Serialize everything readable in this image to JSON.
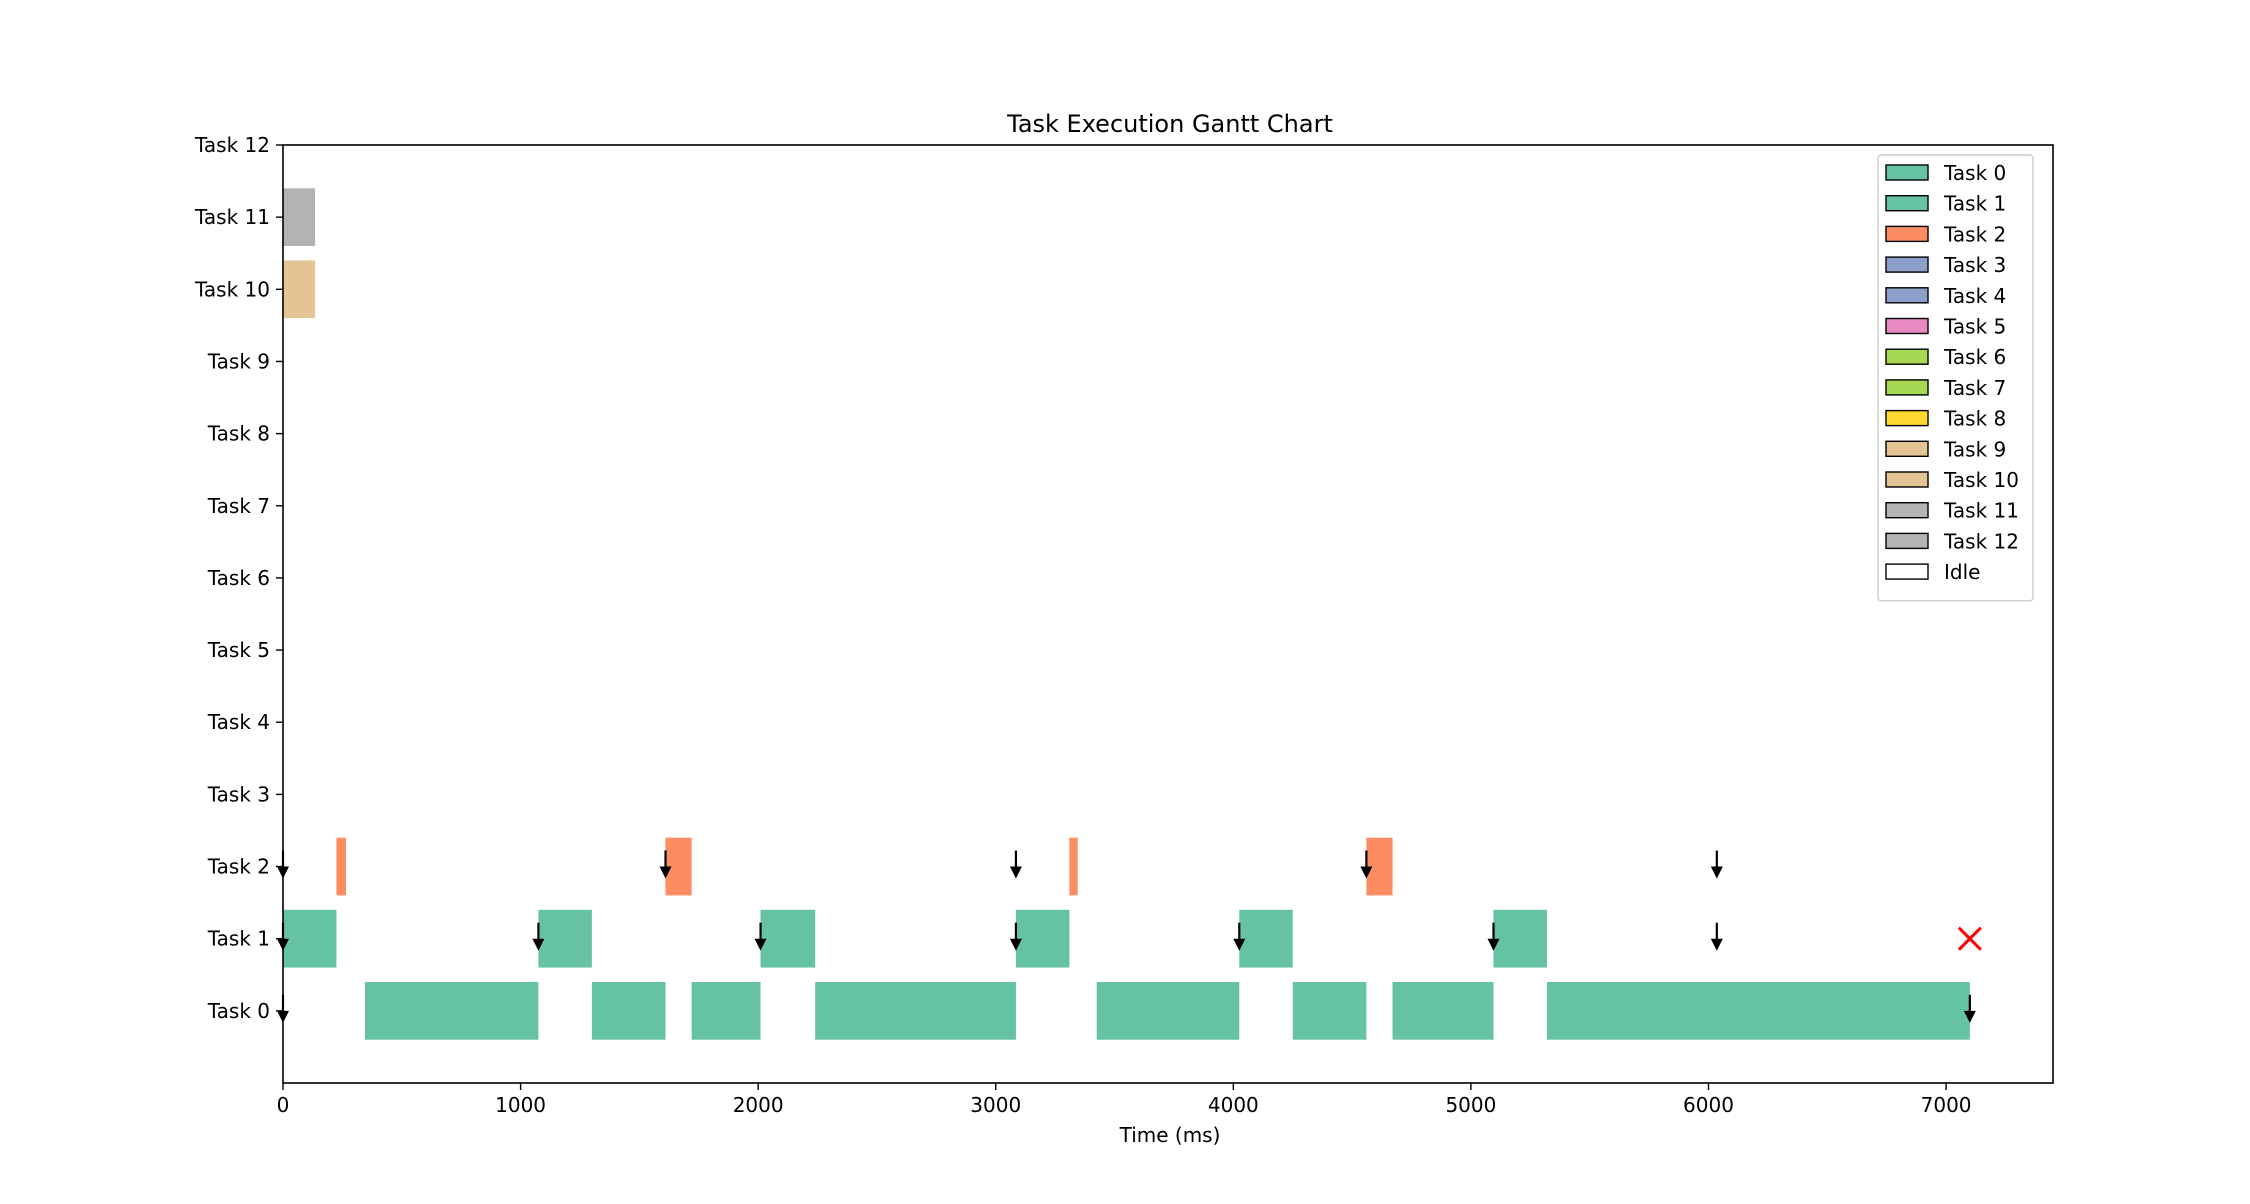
{
  "chart_data": {
    "type": "gantt",
    "title": "Task Execution Gantt Chart",
    "xlabel": "Time (ms)",
    "ylabel": "",
    "xlim": [
      0,
      7450
    ],
    "ylim": [
      -1,
      12
    ],
    "x_ticks": [
      0,
      1000,
      2000,
      3000,
      4000,
      5000,
      6000,
      7000
    ],
    "x_tick_labels": [
      "0",
      "1000",
      "2000",
      "3000",
      "4000",
      "5000",
      "6000",
      "7000"
    ],
    "y_categories": [
      "Task 0",
      "Task 1",
      "Task 2",
      "Task 3",
      "Task 4",
      "Task 5",
      "Task 6",
      "Task 7",
      "Task 8",
      "Task 9",
      "Task 10",
      "Task 11",
      "Task 12"
    ],
    "legend_position": "top-right",
    "legend": [
      {
        "label": "Task 0",
        "color": "#66c2a5"
      },
      {
        "label": "Task 1",
        "color": "#66c2a5"
      },
      {
        "label": "Task 2",
        "color": "#fc8d62"
      },
      {
        "label": "Task 3",
        "color": "#8da0cb"
      },
      {
        "label": "Task 4",
        "color": "#8da0cb"
      },
      {
        "label": "Task 5",
        "color": "#e78ac3"
      },
      {
        "label": "Task 6",
        "color": "#a6d854"
      },
      {
        "label": "Task 7",
        "color": "#a6d854"
      },
      {
        "label": "Task 8",
        "color": "#ffd92f"
      },
      {
        "label": "Task 9",
        "color": "#e5c494"
      },
      {
        "label": "Task 10",
        "color": "#e5c494"
      },
      {
        "label": "Task 11",
        "color": "#b3b3b3"
      },
      {
        "label": "Task 12",
        "color": "#b3b3b3"
      },
      {
        "label": "Idle",
        "color": "#ffffff"
      }
    ],
    "bars": [
      {
        "task": 0,
        "start": 345,
        "end": 1075
      },
      {
        "task": 0,
        "start": 1300,
        "end": 1610
      },
      {
        "task": 0,
        "start": 1720,
        "end": 2010
      },
      {
        "task": 0,
        "start": 2240,
        "end": 3085
      },
      {
        "task": 0,
        "start": 3425,
        "end": 4025
      },
      {
        "task": 0,
        "start": 4250,
        "end": 4560
      },
      {
        "task": 0,
        "start": 4670,
        "end": 5095
      },
      {
        "task": 0,
        "start": 5320,
        "end": 7100
      },
      {
        "task": 1,
        "start": 0,
        "end": 225
      },
      {
        "task": 1,
        "start": 1075,
        "end": 1300
      },
      {
        "task": 1,
        "start": 2010,
        "end": 2240
      },
      {
        "task": 1,
        "start": 3085,
        "end": 3310
      },
      {
        "task": 1,
        "start": 4025,
        "end": 4250
      },
      {
        "task": 1,
        "start": 5095,
        "end": 5320
      },
      {
        "task": 2,
        "start": 225,
        "end": 265
      },
      {
        "task": 2,
        "start": 1610,
        "end": 1720
      },
      {
        "task": 2,
        "start": 3310,
        "end": 3345
      },
      {
        "task": 2,
        "start": 4560,
        "end": 4670
      },
      {
        "task": 10,
        "start": 0,
        "end": 135
      },
      {
        "task": 11,
        "start": 0,
        "end": 135
      }
    ],
    "release_arrows": [
      {
        "task": 0,
        "time": 0
      },
      {
        "task": 0,
        "time": 7100
      },
      {
        "task": 1,
        "time": 0
      },
      {
        "task": 1,
        "time": 1075
      },
      {
        "task": 1,
        "time": 2010
      },
      {
        "task": 1,
        "time": 3085
      },
      {
        "task": 1,
        "time": 4025
      },
      {
        "task": 1,
        "time": 5095
      },
      {
        "task": 1,
        "time": 6035
      },
      {
        "task": 2,
        "time": 0
      },
      {
        "task": 2,
        "time": 1610
      },
      {
        "task": 2,
        "time": 3085
      },
      {
        "task": 2,
        "time": 4560
      },
      {
        "task": 2,
        "time": 6035
      }
    ],
    "deadline_miss_markers": [
      {
        "task": 1,
        "time": 7100,
        "color": "#ff0000"
      }
    ]
  }
}
